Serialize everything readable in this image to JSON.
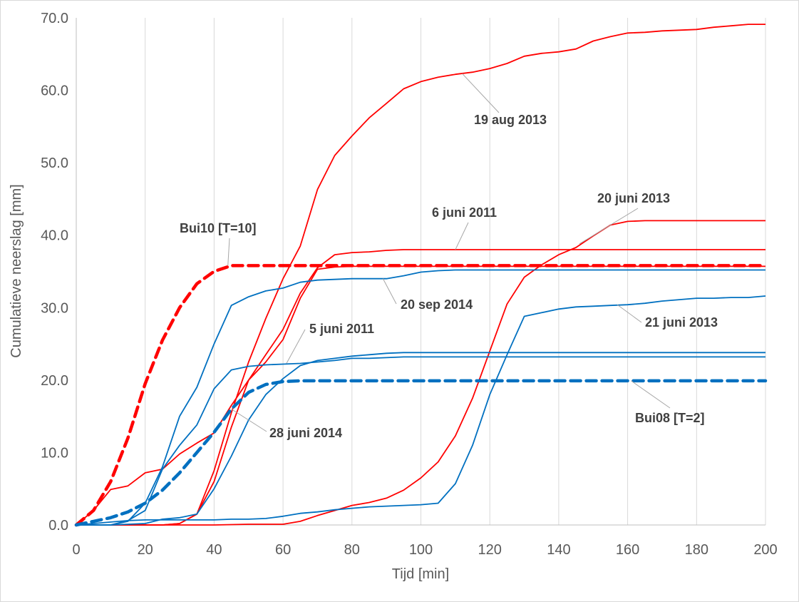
{
  "chart_data": {
    "type": "line",
    "title": "",
    "xlabel": "Tijd [min]",
    "ylabel": "Cumulatieve neerslag  [mm]",
    "xlim": [
      0,
      200
    ],
    "ylim": [
      0,
      70
    ],
    "xticks": [
      0,
      20,
      40,
      60,
      80,
      100,
      120,
      140,
      160,
      180,
      200
    ],
    "yticks": [
      0,
      10,
      20,
      30,
      40,
      50,
      60,
      70
    ],
    "xtick_labels": [
      "0",
      "20",
      "40",
      "60",
      "80",
      "100",
      "120",
      "140",
      "160",
      "180",
      "200"
    ],
    "ytick_labels": [
      "0.0",
      "10.0",
      "20.0",
      "30.0",
      "40.0",
      "50.0",
      "60.0",
      "70.0"
    ],
    "grid": {
      "vertical": true,
      "horizontal": false
    },
    "legend": "none",
    "colors": {
      "red": "#ff0000",
      "blue": "#0070c0"
    },
    "series": [
      {
        "name": "19 aug 2013",
        "color": "#ff0000",
        "dash": false,
        "x": [
          0,
          5,
          10,
          15,
          20,
          25,
          30,
          35,
          40,
          45,
          50,
          55,
          60,
          65,
          70,
          75,
          80,
          85,
          90,
          95,
          100,
          105,
          110,
          115,
          120,
          125,
          130,
          135,
          140,
          145,
          150,
          155,
          160,
          165,
          170,
          175,
          180,
          185,
          190,
          195,
          200
        ],
        "y": [
          0,
          0,
          0,
          0,
          0,
          0,
          0.2,
          1.5,
          7.5,
          15.5,
          22.5,
          28.5,
          34,
          38.5,
          46.3,
          51,
          53.7,
          56.2,
          58.2,
          60.2,
          61.2,
          61.8,
          62.2,
          62.5,
          63,
          63.7,
          64.7,
          65.1,
          65.3,
          65.7,
          66.8,
          67.4,
          67.9,
          68,
          68.2,
          68.3,
          68.4,
          68.7,
          68.9,
          69.1,
          69.1
        ]
      },
      {
        "name": "20 juni 2013",
        "color": "#ff0000",
        "dash": false,
        "x": [
          0,
          10,
          20,
          30,
          40,
          50,
          55,
          60,
          65,
          70,
          75,
          80,
          85,
          90,
          95,
          100,
          105,
          110,
          115,
          120,
          125,
          130,
          135,
          140,
          145,
          150,
          155,
          160,
          165,
          170,
          180,
          190,
          200
        ],
        "y": [
          0,
          0,
          0,
          0,
          0,
          0.1,
          0.1,
          0.1,
          0.5,
          1.3,
          2,
          2.7,
          3.1,
          3.7,
          4.8,
          6.5,
          8.7,
          12.3,
          17.5,
          24,
          30.5,
          34.2,
          35.9,
          37.3,
          38.3,
          39.9,
          41.4,
          41.9,
          42,
          42,
          42,
          42,
          42
        ]
      },
      {
        "name": "6 juni 2011",
        "color": "#ff0000",
        "dash": false,
        "x": [
          0,
          5,
          10,
          15,
          20,
          25,
          30,
          35,
          40,
          45,
          50,
          55,
          60,
          65,
          70,
          75,
          80,
          85,
          90,
          95,
          100,
          110,
          120,
          140,
          160,
          180,
          200
        ],
        "y": [
          0,
          0,
          0,
          0,
          0,
          0,
          0.2,
          1.5,
          6,
          13.5,
          20,
          23.5,
          27,
          32,
          35.5,
          37.3,
          37.6,
          37.7,
          37.9,
          38,
          38,
          38,
          38,
          38,
          38,
          38,
          38
        ]
      },
      {
        "name": "5 juni 2011",
        "color": "#ff0000",
        "dash": false,
        "x": [
          0,
          5,
          10,
          15,
          20,
          25,
          30,
          35,
          40,
          45,
          50,
          55,
          60,
          65,
          70,
          75,
          80,
          85,
          90,
          95,
          100,
          110,
          120,
          140,
          160,
          180,
          200
        ],
        "y": [
          0,
          2,
          4.9,
          5.4,
          7.2,
          7.7,
          9.8,
          11.3,
          12.7,
          16.5,
          20,
          22.5,
          25.6,
          31.3,
          35.3,
          35.6,
          35.7,
          35.7,
          35.7,
          35.7,
          35.7,
          35.7,
          35.7,
          35.7,
          35.7,
          35.7,
          35.7
        ]
      },
      {
        "name": "Bui10 [T=10]",
        "color": "#ff0000",
        "dash": true,
        "x": [
          0,
          5,
          10,
          15,
          20,
          25,
          30,
          35,
          40,
          45,
          50,
          60,
          80,
          100,
          120,
          140,
          160,
          180,
          200
        ],
        "y": [
          0,
          2,
          6,
          12,
          19.5,
          25.5,
          30,
          33.3,
          35,
          35.8,
          35.8,
          35.8,
          35.8,
          35.8,
          35.8,
          35.8,
          35.8,
          35.8,
          35.8
        ]
      },
      {
        "name": "20 sep 2014",
        "color": "#0070c0",
        "dash": false,
        "x": [
          0,
          10,
          15,
          20,
          25,
          30,
          35,
          40,
          45,
          50,
          55,
          60,
          65,
          70,
          75,
          80,
          85,
          90,
          95,
          100,
          105,
          110,
          120,
          140,
          160,
          180,
          200
        ],
        "y": [
          0,
          0,
          0.5,
          3,
          8,
          15,
          19,
          25,
          30.3,
          31.5,
          32.3,
          32.7,
          33.5,
          33.8,
          33.9,
          34,
          34,
          34,
          34.4,
          34.9,
          35.1,
          35.2,
          35.2,
          35.2,
          35.2,
          35.2,
          35.2
        ]
      },
      {
        "name": "21 juni 2013",
        "color": "#0070c0",
        "dash": false,
        "x": [
          0,
          5,
          10,
          15,
          20,
          25,
          30,
          35,
          40,
          45,
          50,
          55,
          60,
          65,
          70,
          75,
          80,
          85,
          90,
          95,
          100,
          105,
          110,
          115,
          120,
          125,
          130,
          135,
          140,
          145,
          150,
          155,
          160,
          165,
          170,
          175,
          180,
          185,
          190,
          195,
          200
        ],
        "y": [
          0,
          0.2,
          0.4,
          0.6,
          0.7,
          0.7,
          0.7,
          0.7,
          0.7,
          0.8,
          0.8,
          0.9,
          1.2,
          1.6,
          1.8,
          2.1,
          2.3,
          2.5,
          2.6,
          2.7,
          2.8,
          3,
          5.7,
          11,
          18,
          23.5,
          28.8,
          29.3,
          29.8,
          30.1,
          30.2,
          30.3,
          30.4,
          30.6,
          30.9,
          31.1,
          31.3,
          31.3,
          31.4,
          31.4,
          31.6
        ]
      },
      {
        "name": "28 juni 2014",
        "color": "#0070c0",
        "dash": false,
        "x": [
          0,
          10,
          15,
          20,
          25,
          30,
          35,
          40,
          45,
          50,
          55,
          60,
          65,
          70,
          75,
          80,
          85,
          90,
          95,
          100,
          110,
          120,
          140,
          160,
          180,
          200
        ],
        "y": [
          0,
          0,
          0.6,
          2,
          7.7,
          11,
          13.8,
          18.8,
          21.4,
          21.9,
          22.1,
          22.2,
          22.3,
          22.5,
          22.7,
          23,
          23,
          23.1,
          23.2,
          23.2,
          23.2,
          23.2,
          23.2,
          23.2,
          23.2,
          23.2
        ]
      },
      {
        "name": "",
        "color": "#0070c0",
        "dash": false,
        "x": [
          0,
          10,
          20,
          25,
          30,
          35,
          40,
          45,
          50,
          55,
          60,
          65,
          70,
          75,
          80,
          85,
          90,
          95,
          100,
          110,
          120,
          140,
          160,
          180,
          200
        ],
        "y": [
          0,
          0,
          0.2,
          0.8,
          1,
          1.5,
          5,
          9.5,
          14.5,
          18,
          20.2,
          22,
          22.7,
          23,
          23.3,
          23.5,
          23.7,
          23.8,
          23.8,
          23.8,
          23.8,
          23.8,
          23.8,
          23.8,
          23.8
        ]
      },
      {
        "name": "Bui08 [T=2]",
        "color": "#0070c0",
        "dash": true,
        "x": [
          0,
          5,
          10,
          15,
          20,
          25,
          30,
          35,
          40,
          45,
          50,
          55,
          60,
          65,
          70,
          80,
          100,
          120,
          140,
          160,
          180,
          200
        ],
        "y": [
          0,
          0.5,
          1,
          1.8,
          3,
          4.8,
          7.2,
          10,
          12.8,
          16,
          18.3,
          19.4,
          19.8,
          19.9,
          19.9,
          19.9,
          19.9,
          19.9,
          19.9,
          19.9,
          19.9,
          19.9
        ]
      }
    ],
    "annotations": [
      {
        "text": "19 aug 2013",
        "series": "19 aug 2013"
      },
      {
        "text": "20 juni 2013",
        "series": "20 juni 2013"
      },
      {
        "text": "6 juni 2011",
        "series": "6 juni 2011"
      },
      {
        "text": "Bui10 [T=10]",
        "series": "Bui10 [T=10]"
      },
      {
        "text": "20 sep 2014",
        "series": "20 sep 2014"
      },
      {
        "text": "5 juni 2011",
        "series": "5 juni 2011"
      },
      {
        "text": "21 juni 2013",
        "series": "21 juni 2013"
      },
      {
        "text": "28 juni 2014",
        "series": "28 juni 2014"
      },
      {
        "text": "Bui08 [T=2]",
        "series": "Bui08 [T=2]"
      }
    ]
  }
}
